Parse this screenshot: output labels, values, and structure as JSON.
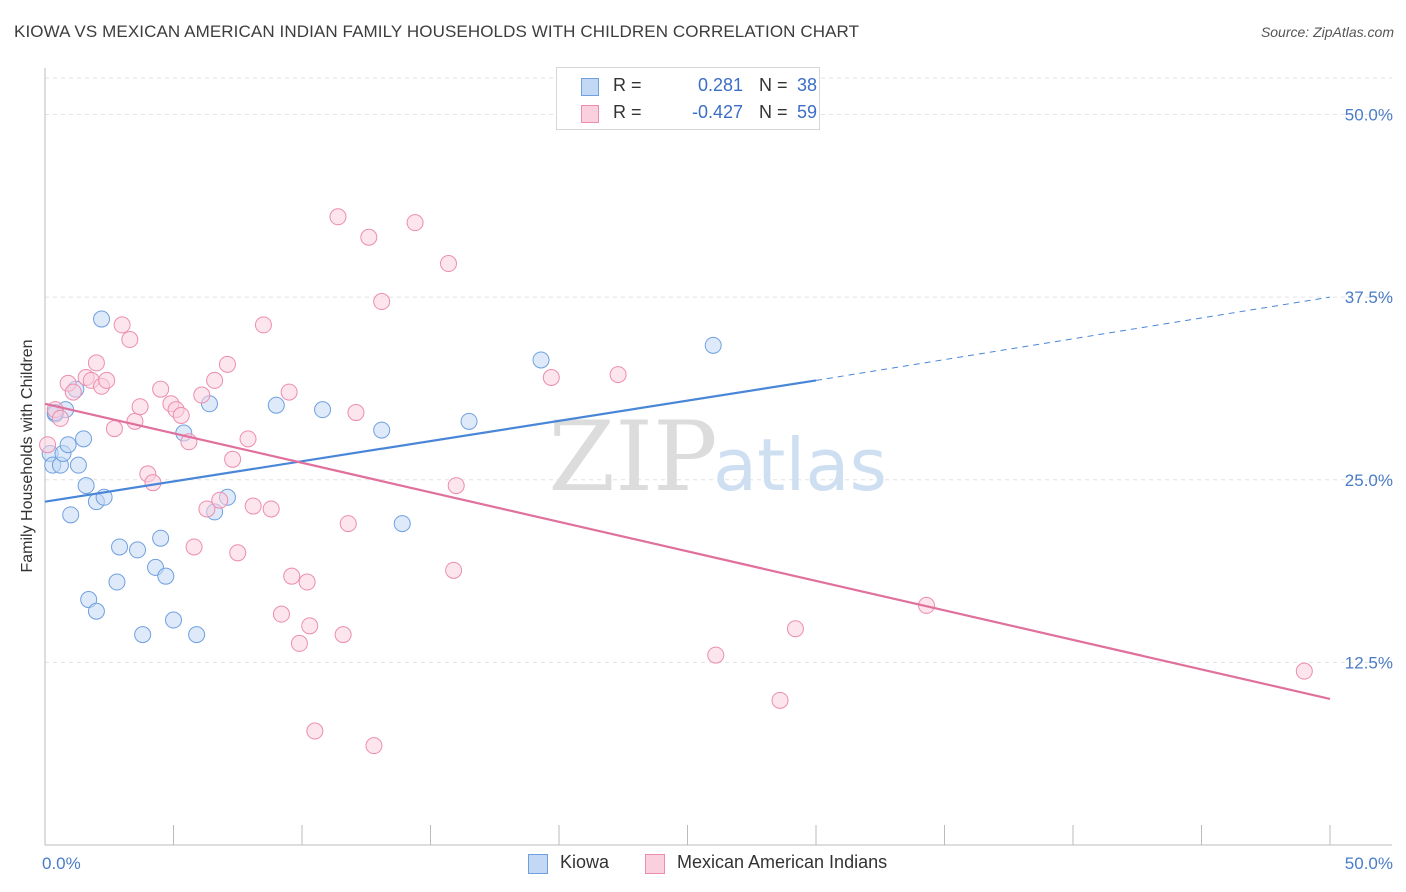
{
  "title": "KIOWA VS MEXICAN AMERICAN INDIAN FAMILY HOUSEHOLDS WITH CHILDREN CORRELATION CHART",
  "source": "Source: ZipAtlas.com",
  "watermark": {
    "zip": "ZIP",
    "atlas": "atlas"
  },
  "stats": [
    {
      "r_label": "R =",
      "r_value": "0.281",
      "n_label": "N =",
      "n_value": "38",
      "color": "#6fa0e0",
      "fill": "#c3d8f4"
    },
    {
      "r_label": "R =",
      "r_value": "-0.427",
      "n_label": "N =",
      "n_value": "59",
      "color": "#ec8db0",
      "fill": "#fbd0de"
    }
  ],
  "legend": [
    {
      "label": "Kiowa",
      "color": "#6fa0e0",
      "fill": "#c3d8f4"
    },
    {
      "label": "Mexican American Indians",
      "color": "#ec8db0",
      "fill": "#fbd0de"
    }
  ],
  "chart_data": {
    "type": "scatter",
    "title": "KIOWA VS MEXICAN AMERICAN INDIAN FAMILY HOUSEHOLDS WITH CHILDREN CORRELATION CHART",
    "xlabel": "",
    "ylabel": "Family Households with Children",
    "xlim": [
      0,
      50
    ],
    "ylim": [
      0,
      52.5
    ],
    "x_tick_labels": [
      "0.0%",
      "50.0%"
    ],
    "y_ticks": [
      12.5,
      25.0,
      37.5,
      50.0
    ],
    "y_tick_labels": [
      "12.5%",
      "25.0%",
      "37.5%",
      "50.0%"
    ],
    "grid": true,
    "legend_position": "bottom",
    "series": [
      {
        "name": "Kiowa",
        "color": "#4a86d8",
        "fill": "#c3d8f4",
        "stroke": "#6fa0e0",
        "trend": {
          "x0": 0,
          "y0": 23.5,
          "x1": 30,
          "y1": 31.8,
          "dash_to_x": 50,
          "dash_to_y": 37.5
        },
        "points": [
          [
            0.2,
            26.8
          ],
          [
            0.3,
            26.0
          ],
          [
            0.4,
            29.5
          ],
          [
            0.6,
            26.0
          ],
          [
            0.7,
            26.8
          ],
          [
            0.8,
            29.8
          ],
          [
            0.9,
            27.4
          ],
          [
            1.0,
            22.6
          ],
          [
            1.2,
            31.2
          ],
          [
            1.3,
            26.0
          ],
          [
            1.5,
            27.8
          ],
          [
            1.6,
            24.6
          ],
          [
            1.7,
            16.8
          ],
          [
            2.0,
            23.5
          ],
          [
            2.0,
            16.0
          ],
          [
            2.2,
            36.0
          ],
          [
            2.3,
            23.8
          ],
          [
            2.8,
            18.0
          ],
          [
            2.9,
            20.4
          ],
          [
            3.6,
            20.2
          ],
          [
            3.8,
            14.4
          ],
          [
            4.3,
            19.0
          ],
          [
            4.5,
            21.0
          ],
          [
            4.7,
            18.4
          ],
          [
            5.0,
            15.4
          ],
          [
            5.4,
            28.2
          ],
          [
            5.9,
            14.4
          ],
          [
            6.4,
            30.2
          ],
          [
            6.6,
            22.8
          ],
          [
            7.1,
            23.8
          ],
          [
            9.0,
            30.1
          ],
          [
            10.8,
            29.8
          ],
          [
            13.1,
            28.4
          ],
          [
            13.9,
            22.0
          ],
          [
            16.5,
            29.0
          ],
          [
            19.3,
            33.2
          ],
          [
            26.0,
            34.2
          ],
          [
            0.4,
            29.6
          ]
        ]
      },
      {
        "name": "Mexican American Indians",
        "color": "#e0709c",
        "fill": "#fbd0de",
        "stroke": "#ec8db0",
        "trend": {
          "x0": 0,
          "y0": 30.2,
          "x1": 50,
          "y1": 10.0
        },
        "points": [
          [
            0.1,
            27.4
          ],
          [
            0.4,
            29.8
          ],
          [
            0.6,
            29.2
          ],
          [
            0.9,
            31.6
          ],
          [
            1.1,
            31.0
          ],
          [
            1.6,
            32.0
          ],
          [
            1.8,
            31.8
          ],
          [
            2.0,
            33.0
          ],
          [
            2.2,
            31.4
          ],
          [
            2.4,
            31.8
          ],
          [
            2.7,
            28.5
          ],
          [
            3.0,
            35.6
          ],
          [
            3.3,
            34.6
          ],
          [
            3.5,
            29.0
          ],
          [
            3.7,
            30.0
          ],
          [
            4.0,
            25.4
          ],
          [
            4.2,
            24.8
          ],
          [
            4.5,
            31.2
          ],
          [
            4.9,
            30.2
          ],
          [
            5.1,
            29.8
          ],
          [
            5.3,
            29.4
          ],
          [
            5.6,
            27.6
          ],
          [
            5.8,
            20.4
          ],
          [
            6.1,
            30.8
          ],
          [
            6.3,
            23.0
          ],
          [
            6.6,
            31.8
          ],
          [
            6.8,
            23.6
          ],
          [
            7.1,
            32.9
          ],
          [
            7.3,
            26.4
          ],
          [
            7.5,
            20.0
          ],
          [
            7.9,
            27.8
          ],
          [
            8.1,
            23.2
          ],
          [
            8.5,
            35.6
          ],
          [
            8.8,
            23.0
          ],
          [
            9.2,
            15.8
          ],
          [
            9.5,
            31.0
          ],
          [
            9.6,
            18.4
          ],
          [
            9.9,
            13.8
          ],
          [
            10.2,
            18.0
          ],
          [
            10.3,
            15.0
          ],
          [
            10.5,
            7.8
          ],
          [
            11.4,
            43.0
          ],
          [
            11.6,
            14.4
          ],
          [
            11.8,
            22.0
          ],
          [
            12.1,
            29.6
          ],
          [
            12.6,
            41.6
          ],
          [
            12.8,
            6.8
          ],
          [
            13.1,
            37.2
          ],
          [
            14.4,
            42.6
          ],
          [
            15.7,
            39.8
          ],
          [
            15.9,
            18.8
          ],
          [
            16.0,
            24.6
          ],
          [
            19.7,
            32.0
          ],
          [
            22.3,
            32.2
          ],
          [
            26.1,
            13.0
          ],
          [
            28.6,
            9.9
          ],
          [
            29.2,
            14.8
          ],
          [
            34.3,
            16.4
          ],
          [
            49.0,
            11.9
          ]
        ]
      }
    ]
  }
}
